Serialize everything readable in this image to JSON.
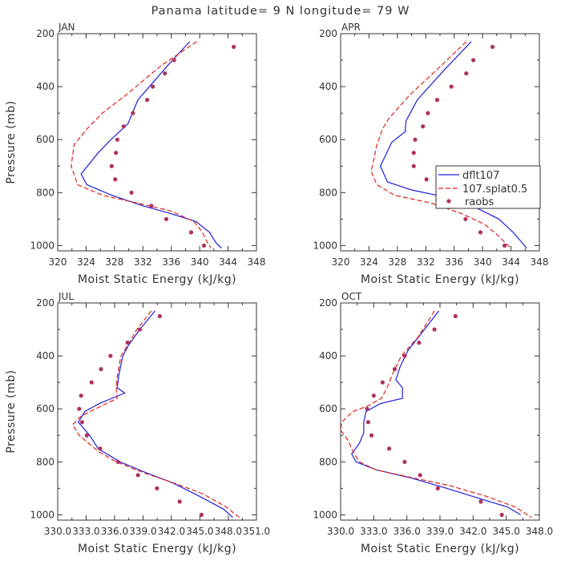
{
  "figure": {
    "title": "Panama  latitude= 9 N longitude= 79 W"
  },
  "colors": {
    "dflt": "#1f1fd6",
    "splat": "#e0221c",
    "raobs": "#b03060",
    "axis": "#333333"
  },
  "chart_data": [
    {
      "type": "line",
      "panel": "JAN",
      "xlabel": "Moist Static Energy (kJ/kg)",
      "ylabel": "Pressure (mb)",
      "xlim": [
        320,
        348
      ],
      "ylim": [
        1020,
        200
      ],
      "xticks": [
        320,
        324,
        328,
        332,
        336,
        340,
        344,
        348
      ],
      "xtick_labels": [
        "320",
        "324",
        "328",
        "332",
        "336",
        "340",
        "344",
        "348"
      ],
      "yticks": [
        200,
        400,
        600,
        800,
        1000
      ],
      "ytick_labels": [
        "200",
        "400",
        "600",
        "800",
        "1000"
      ],
      "series": [
        {
          "name": "dflt107",
          "style": "solid",
          "color": "#1f1fd6",
          "points": [
            [
              338.6,
              230
            ],
            [
              335.5,
              320
            ],
            [
              331.3,
              450
            ],
            [
              329.9,
              540
            ],
            [
              327.5,
              600
            ],
            [
              325.7,
              650
            ],
            [
              323.3,
              730
            ],
            [
              324.1,
              770
            ],
            [
              327.6,
              810
            ],
            [
              332,
              850
            ],
            [
              336,
              880
            ],
            [
              339.5,
              910
            ],
            [
              341.4,
              950
            ],
            [
              342.3,
              990
            ],
            [
              343.1,
              1010
            ]
          ]
        },
        {
          "name": "107.splat0.5",
          "style": "dashed",
          "color": "#e0221c",
          "points": [
            [
              339.6,
              230
            ],
            [
              334.6,
              320
            ],
            [
              329.7,
              430
            ],
            [
              326.3,
              500
            ],
            [
              324.1,
              560
            ],
            [
              322.3,
              620
            ],
            [
              321.9,
              700
            ],
            [
              322.8,
              770
            ],
            [
              326.3,
              810
            ],
            [
              331.3,
              840
            ],
            [
              336,
              870
            ],
            [
              339.2,
              910
            ],
            [
              340.4,
              950
            ],
            [
              341.1,
              990
            ],
            [
              341.6,
              1010
            ]
          ]
        }
      ],
      "points_series": {
        "name": "raobs",
        "color": "#b03060",
        "points": [
          [
            344.8,
            250
          ],
          [
            336.4,
            300
          ],
          [
            335.1,
            350
          ],
          [
            333.4,
            400
          ],
          [
            332.6,
            450
          ],
          [
            330.6,
            500
          ],
          [
            329.3,
            550
          ],
          [
            328.4,
            600
          ],
          [
            328.2,
            650
          ],
          [
            327.6,
            700
          ],
          [
            328.1,
            750
          ],
          [
            330.4,
            800
          ],
          [
            333.2,
            850
          ],
          [
            335.3,
            900
          ],
          [
            338.8,
            950
          ],
          [
            340.6,
            1000
          ]
        ]
      }
    },
    {
      "type": "line",
      "panel": "APR",
      "xlabel": "Moist Static Energy (kJ/kg)",
      "ylabel": "",
      "xlim": [
        320,
        348
      ],
      "ylim": [
        1020,
        200
      ],
      "xticks": [
        320,
        324,
        328,
        332,
        336,
        340,
        344,
        348
      ],
      "xtick_labels": [
        "320",
        "324",
        "328",
        "332",
        "336",
        "340",
        "344",
        "348"
      ],
      "yticks": [
        200,
        400,
        600,
        800,
        1000
      ],
      "ytick_labels": [
        "200",
        "400",
        "600",
        "800",
        "1000"
      ],
      "legend": {
        "position": "right",
        "entries": [
          "dflt107",
          "107.splat0.5",
          "raobs"
        ]
      },
      "series": [
        {
          "name": "dflt107",
          "style": "solid",
          "color": "#1f1fd6",
          "points": [
            [
              338.4,
              230
            ],
            [
              334.5,
              340
            ],
            [
              330.8,
              450
            ],
            [
              329.2,
              530
            ],
            [
              329.1,
              570
            ],
            [
              327.2,
              610
            ],
            [
              326.5,
              650
            ],
            [
              325.6,
              700
            ],
            [
              326.6,
              760
            ],
            [
              330,
              790
            ],
            [
              335.3,
              820
            ],
            [
              339.3,
              860
            ],
            [
              342.3,
              900
            ],
            [
              344.3,
              950
            ],
            [
              345.6,
              990
            ],
            [
              346.2,
              1010
            ]
          ]
        },
        {
          "name": "107.splat0.5",
          "style": "dashed",
          "color": "#e0221c",
          "points": [
            [
              337.7,
              230
            ],
            [
              333.8,
              330
            ],
            [
              329.8,
              430
            ],
            [
              326.8,
              520
            ],
            [
              325.9,
              560
            ],
            [
              325.1,
              620
            ],
            [
              324.8,
              660
            ],
            [
              324.3,
              720
            ],
            [
              325.1,
              770
            ],
            [
              327.6,
              810
            ],
            [
              332.8,
              840
            ],
            [
              337.1,
              880
            ],
            [
              340.3,
              920
            ],
            [
              342.1,
              960
            ],
            [
              343.2,
              990
            ],
            [
              344,
              1010
            ]
          ]
        }
      ],
      "points_series": {
        "name": "raobs",
        "color": "#b03060",
        "points": [
          [
            341.4,
            250
          ],
          [
            338.7,
            300
          ],
          [
            337.7,
            350
          ],
          [
            335.6,
            400
          ],
          [
            333.6,
            450
          ],
          [
            332.3,
            500
          ],
          [
            331.6,
            550
          ],
          [
            330.5,
            600
          ],
          [
            330.3,
            650
          ],
          [
            330.3,
            700
          ],
          [
            332.1,
            750
          ],
          [
            333.8,
            800
          ],
          [
            335.4,
            825
          ],
          [
            335.6,
            850
          ],
          [
            337.6,
            900
          ],
          [
            339.7,
            950
          ],
          [
            343.1,
            1000
          ]
        ]
      }
    },
    {
      "type": "line",
      "panel": "JUL",
      "xlabel": "Moist Static Energy (kJ/kg)",
      "ylabel": "Pressure (mb)",
      "xlim": [
        330.03,
        351.0
      ],
      "ylim": [
        1020,
        200
      ],
      "xticks": [
        330.03,
        333.03,
        336.03,
        339.03,
        342.03,
        345.03,
        348.03,
        351.0
      ],
      "xtick_labels": [
        "330.0",
        "333.0",
        "336.0",
        "339.0",
        "342.0",
        "345.0",
        "348.0",
        "351.0"
      ],
      "yticks": [
        200,
        400,
        600,
        800,
        1000
      ],
      "ytick_labels": [
        "200",
        "400",
        "600",
        "800",
        "1000"
      ],
      "series": [
        {
          "name": "dflt107",
          "style": "solid",
          "color": "#1f1fd6",
          "points": [
            [
              340.3,
              230
            ],
            [
              338.7,
              300
            ],
            [
              337.5,
              360
            ],
            [
              336.9,
              400
            ],
            [
              336.5,
              470
            ],
            [
              336.3,
              520
            ],
            [
              337.1,
              540
            ],
            [
              334.4,
              580
            ],
            [
              332.9,
              610
            ],
            [
              332.2,
              650
            ],
            [
              333.4,
              700
            ],
            [
              334.3,
              750
            ],
            [
              336.6,
              800
            ],
            [
              339.3,
              840
            ],
            [
              342.2,
              880
            ],
            [
              345,
              930
            ],
            [
              347.6,
              980
            ],
            [
              348.5,
              1010
            ]
          ]
        },
        {
          "name": "107.splat0.5",
          "style": "dashed",
          "color": "#e0221c",
          "points": [
            [
              339.9,
              230
            ],
            [
              338.4,
              300
            ],
            [
              337.4,
              360
            ],
            [
              336.7,
              400
            ],
            [
              336.3,
              480
            ],
            [
              336.2,
              520
            ],
            [
              336.3,
              560
            ],
            [
              334,
              600
            ],
            [
              332.4,
              630
            ],
            [
              331.6,
              660
            ],
            [
              332.3,
              700
            ],
            [
              334.3,
              760
            ],
            [
              336.2,
              800
            ],
            [
              339,
              840
            ],
            [
              342.3,
              880
            ],
            [
              345.3,
              920
            ],
            [
              347.8,
              970
            ],
            [
              349.2,
              1010
            ]
          ]
        }
      ],
      "points_series": {
        "name": "raobs",
        "color": "#b03060",
        "points": [
          [
            340.8,
            250
          ],
          [
            338.7,
            300
          ],
          [
            337.4,
            350
          ],
          [
            335.6,
            400
          ],
          [
            334.6,
            450
          ],
          [
            333.6,
            500
          ],
          [
            332.5,
            550
          ],
          [
            332.3,
            600
          ],
          [
            332.6,
            650
          ],
          [
            333.1,
            700
          ],
          [
            334.5,
            750
          ],
          [
            336.4,
            800
          ],
          [
            338.5,
            850
          ],
          [
            340.5,
            900
          ],
          [
            342.9,
            950
          ],
          [
            345.2,
            1000
          ]
        ]
      }
    },
    {
      "type": "line",
      "panel": "OCT",
      "xlabel": "Moist Static Energy (kJ/kg)",
      "ylabel": "",
      "xlim": [
        330.0,
        348.0
      ],
      "ylim": [
        1020,
        200
      ],
      "xticks": [
        330.0,
        333.0,
        336.0,
        339.0,
        342.0,
        345.0,
        348.0
      ],
      "xtick_labels": [
        "330.0",
        "333.0",
        "336.0",
        "339.0",
        "342.0",
        "345.0",
        "348.0"
      ],
      "yticks": [
        200,
        400,
        600,
        800,
        1000
      ],
      "ytick_labels": [
        "200",
        "400",
        "600",
        "800",
        "1000"
      ],
      "series": [
        {
          "name": "dflt107",
          "style": "solid",
          "color": "#1f1fd6",
          "points": [
            [
              338.9,
              230
            ],
            [
              337.6,
              300
            ],
            [
              336.1,
              380
            ],
            [
              335.4,
              440
            ],
            [
              335,
              490
            ],
            [
              335.6,
              520
            ],
            [
              335.6,
              560
            ],
            [
              333.6,
              580
            ],
            [
              332.3,
              610
            ],
            [
              332.1,
              650
            ],
            [
              332.1,
              690
            ],
            [
              331.7,
              730
            ],
            [
              331,
              770
            ],
            [
              331.4,
              800
            ],
            [
              333.2,
              830
            ],
            [
              336.3,
              860
            ],
            [
              339.6,
              900
            ],
            [
              342.7,
              940
            ],
            [
              345.1,
              970
            ],
            [
              346.3,
              1000
            ]
          ]
        },
        {
          "name": "107.splat0.5",
          "style": "dashed",
          "color": "#e0221c",
          "points": [
            [
              338.5,
              230
            ],
            [
              337,
              330
            ],
            [
              335.5,
              400
            ],
            [
              334.9,
              450
            ],
            [
              334.2,
              520
            ],
            [
              333.7,
              560
            ],
            [
              332.4,
              590
            ],
            [
              331.1,
              610
            ],
            [
              330.1,
              650
            ],
            [
              330,
              680
            ],
            [
              330.7,
              720
            ],
            [
              331.1,
              760
            ],
            [
              331.7,
              800
            ],
            [
              333.2,
              830
            ],
            [
              336.5,
              860
            ],
            [
              339.9,
              890
            ],
            [
              343.2,
              930
            ],
            [
              345.8,
              970
            ],
            [
              347.3,
              1010
            ]
          ]
        }
      ],
      "points_series": {
        "name": "raobs",
        "color": "#b03060",
        "points": [
          [
            340.4,
            250
          ],
          [
            338.5,
            300
          ],
          [
            337.1,
            350
          ],
          [
            335.8,
            400
          ],
          [
            334.9,
            450
          ],
          [
            333.8,
            500
          ],
          [
            333,
            550
          ],
          [
            332.4,
            600
          ],
          [
            332.5,
            650
          ],
          [
            332.8,
            700
          ],
          [
            334.4,
            750
          ],
          [
            335.8,
            800
          ],
          [
            337.2,
            850
          ],
          [
            338.8,
            900
          ],
          [
            342.7,
            950
          ],
          [
            344.6,
            1000
          ]
        ]
      }
    }
  ]
}
